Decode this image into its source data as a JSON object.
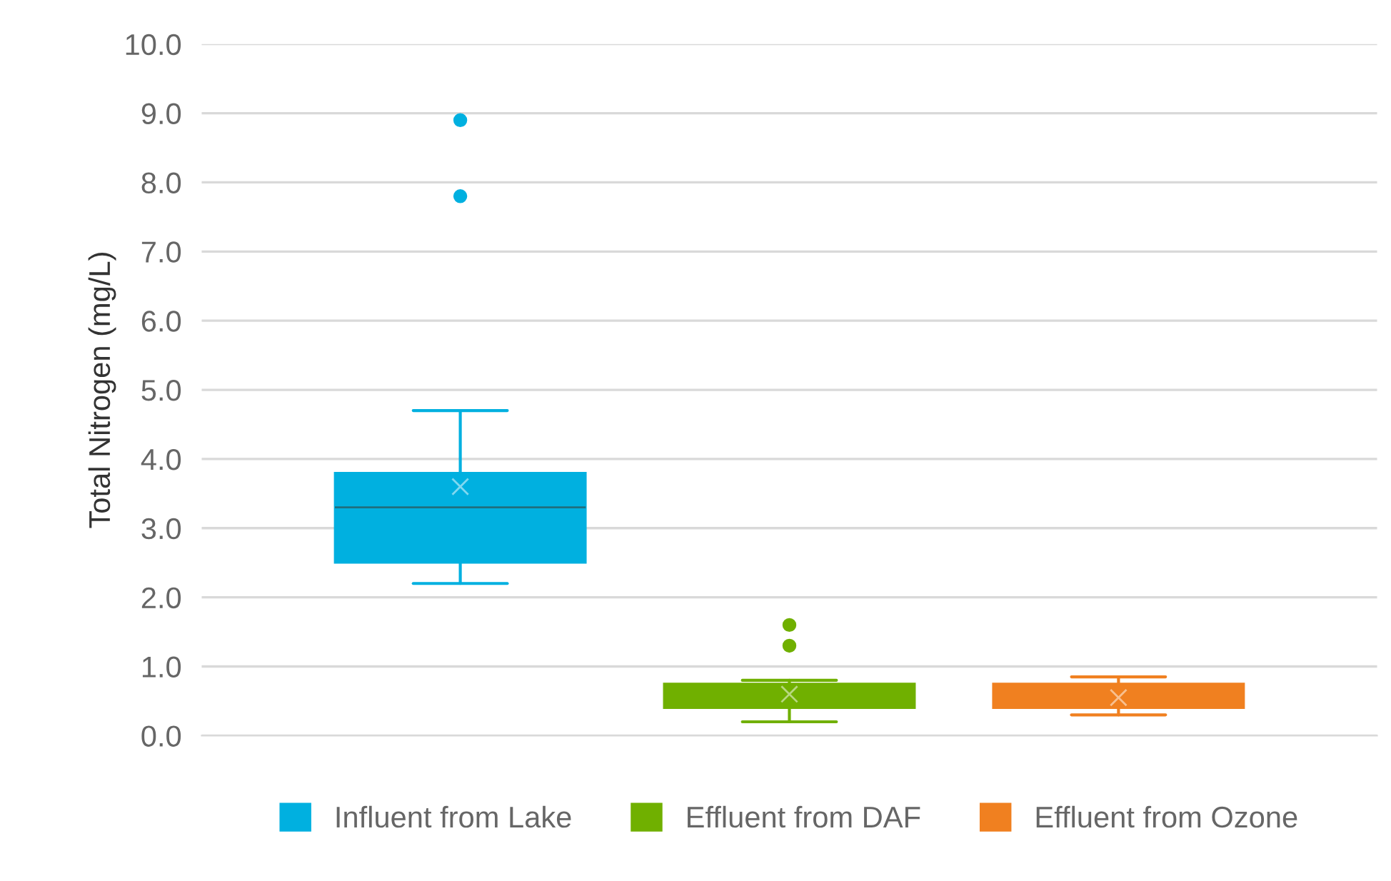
{
  "chart_data": {
    "type": "box",
    "ylabel": "Total Nitrogen (mg/L)",
    "categories": [
      null
    ],
    "ylim": [
      0,
      10
    ],
    "yticks": [
      {
        "value": 0,
        "label": "0.0"
      },
      {
        "value": 1,
        "label": "1.0"
      },
      {
        "value": 2,
        "label": "2.0"
      },
      {
        "value": 3,
        "label": "3.0"
      },
      {
        "value": 4,
        "label": "4.0"
      },
      {
        "value": 5,
        "label": "5.0"
      },
      {
        "value": 6,
        "label": "6.0"
      },
      {
        "value": 7,
        "label": "7.0"
      },
      {
        "value": 8,
        "label": "8.0"
      },
      {
        "value": 9,
        "label": "9.0"
      },
      {
        "value": 10,
        "label": "10.0"
      }
    ],
    "grid": "y",
    "legend": "bottom",
    "tick_labels": "y",
    "series": [
      {
        "name": "Influent from Lake",
        "color": "#00b0e0",
        "boxes": [
          {
            "low": 2.2,
            "q1": 2.5,
            "median": 3.3,
            "q3": 3.8,
            "high": 4.7,
            "mean": 3.6,
            "outliers": [
              7.8,
              8.9
            ]
          }
        ]
      },
      {
        "name": "Effluent from DAF",
        "color": "#70b000",
        "boxes": [
          {
            "low": 0.2,
            "q1": 0.4,
            "median": 0.55,
            "q3": 0.75,
            "high": 0.8,
            "mean": 0.6,
            "outliers": [
              1.3,
              1.6
            ]
          }
        ]
      },
      {
        "name": "Effluent from Ozone",
        "color": "#f08020",
        "boxes": [
          {
            "low": 0.3,
            "q1": 0.4,
            "median": 0.55,
            "q3": 0.75,
            "high": 0.85,
            "mean": 0.55
          }
        ]
      }
    ]
  }
}
